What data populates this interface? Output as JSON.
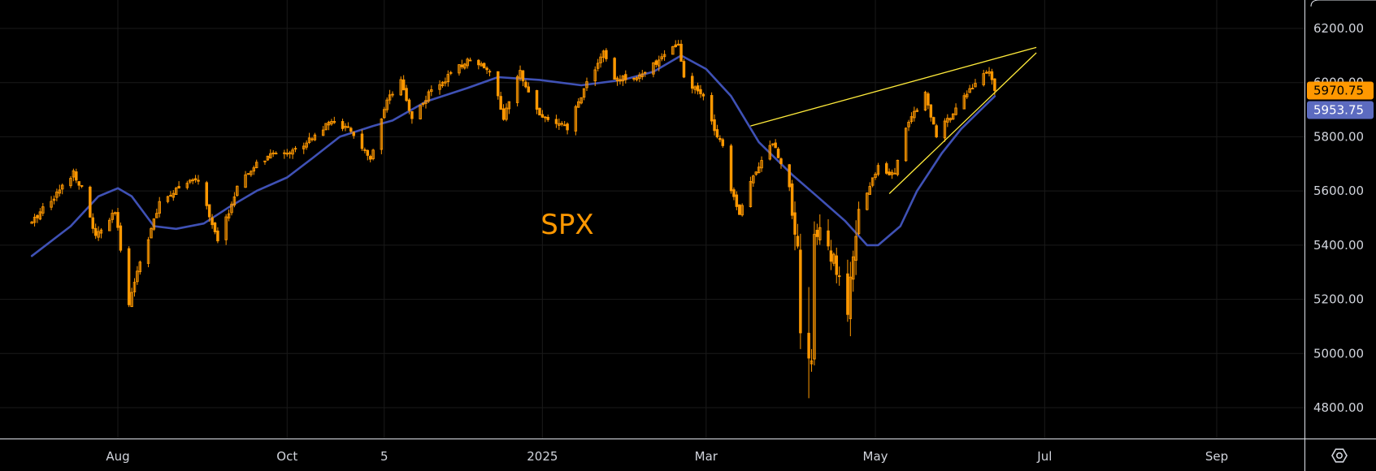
{
  "chart_data": {
    "type": "candlestick",
    "title": "SPX",
    "ylim": [
      4700,
      6240
    ],
    "y_ticks": [
      {
        "value": 6200,
        "label": "6200.00"
      },
      {
        "value": 6000,
        "label": "6000.00"
      },
      {
        "value": 5800,
        "label": "5800.00"
      },
      {
        "value": 5600,
        "label": "5600.00"
      },
      {
        "value": 5400,
        "label": "5400.00"
      },
      {
        "value": 5200,
        "label": "5200.00"
      },
      {
        "value": 5000,
        "label": "5000.00"
      },
      {
        "value": 4800,
        "label": "4800.00"
      }
    ],
    "x_ticks": [
      {
        "date": "2024-08-01",
        "label": "Aug"
      },
      {
        "date": "2024-10-01",
        "label": "Oct"
      },
      {
        "date": "2024-11-05",
        "label": "5"
      },
      {
        "date": "2025-01-01",
        "label": "2025"
      },
      {
        "date": "2025-03-01",
        "label": "Mar"
      },
      {
        "date": "2025-05-01",
        "label": "May"
      },
      {
        "date": "2025-07-01",
        "label": "Jul"
      },
      {
        "date": "2025-09-01",
        "label": "Sep"
      }
    ],
    "x_range": [
      "2024-07-01",
      "2025-09-30"
    ],
    "close_anchors": [
      [
        "2024-07-01",
        5480
      ],
      [
        "2024-07-05",
        5540
      ],
      [
        "2024-07-10",
        5590
      ],
      [
        "2024-07-16",
        5670
      ],
      [
        "2024-07-19",
        5610
      ],
      [
        "2024-07-24",
        5430
      ],
      [
        "2024-07-31",
        5520
      ],
      [
        "2024-08-05",
        5190
      ],
      [
        "2024-08-09",
        5340
      ],
      [
        "2024-08-16",
        5550
      ],
      [
        "2024-08-23",
        5620
      ],
      [
        "2024-08-30",
        5640
      ],
      [
        "2024-09-06",
        5410
      ],
      [
        "2024-09-13",
        5610
      ],
      [
        "2024-09-20",
        5700
      ],
      [
        "2024-09-27",
        5740
      ],
      [
        "2024-10-04",
        5750
      ],
      [
        "2024-10-11",
        5810
      ],
      [
        "2024-10-18",
        5860
      ],
      [
        "2024-10-25",
        5810
      ],
      [
        "2024-10-31",
        5710
      ],
      [
        "2024-11-06",
        5930
      ],
      [
        "2024-11-11",
        6000
      ],
      [
        "2024-11-15",
        5870
      ],
      [
        "2024-11-22",
        5970
      ],
      [
        "2024-11-29",
        6030
      ],
      [
        "2024-12-06",
        6090
      ],
      [
        "2024-12-13",
        6050
      ],
      [
        "2024-12-18",
        5870
      ],
      [
        "2024-12-24",
        6040
      ],
      [
        "2024-12-31",
        5880
      ],
      [
        "2025-01-10",
        5830
      ],
      [
        "2025-01-17",
        6000
      ],
      [
        "2025-01-23",
        6110
      ],
      [
        "2025-01-27",
        6010
      ],
      [
        "2025-02-07",
        6030
      ],
      [
        "2025-02-14",
        6110
      ],
      [
        "2025-02-19",
        6140
      ],
      [
        "2025-02-21",
        6010
      ],
      [
        "2025-02-28",
        5950
      ],
      [
        "2025-03-03",
        5850
      ],
      [
        "2025-03-07",
        5770
      ],
      [
        "2025-03-10",
        5610
      ],
      [
        "2025-03-13",
        5520
      ],
      [
        "2025-03-19",
        5680
      ],
      [
        "2025-03-25",
        5780
      ],
      [
        "2025-03-31",
        5620
      ],
      [
        "2025-04-03",
        5400
      ],
      [
        "2025-04-04",
        5070
      ],
      [
        "2025-04-08",
        4980
      ],
      [
        "2025-04-09",
        5450
      ],
      [
        "2025-04-14",
        5400
      ],
      [
        "2025-04-21",
        5160
      ],
      [
        "2025-04-25",
        5520
      ],
      [
        "2025-05-02",
        5690
      ],
      [
        "2025-05-08",
        5660
      ],
      [
        "2025-05-12",
        5840
      ],
      [
        "2025-05-19",
        5960
      ],
      [
        "2025-05-23",
        5800
      ],
      [
        "2025-05-30",
        5910
      ],
      [
        "2025-06-06",
        6000
      ],
      [
        "2025-06-11",
        6040
      ],
      [
        "2025-06-13",
        5970
      ]
    ],
    "series": [
      {
        "name": "",
        "kind": "moving-average",
        "color": "#3f51b5",
        "points": [
          [
            "2024-07-01",
            5360
          ],
          [
            "2024-07-15",
            5470
          ],
          [
            "2024-07-25",
            5580
          ],
          [
            "2024-08-01",
            5610
          ],
          [
            "2024-08-06",
            5580
          ],
          [
            "2024-08-14",
            5470
          ],
          [
            "2024-08-22",
            5460
          ],
          [
            "2024-09-01",
            5480
          ],
          [
            "2024-09-10",
            5540
          ],
          [
            "2024-09-20",
            5600
          ],
          [
            "2024-10-01",
            5650
          ],
          [
            "2024-10-10",
            5720
          ],
          [
            "2024-10-20",
            5800
          ],
          [
            "2024-11-01",
            5840
          ],
          [
            "2024-11-08",
            5860
          ],
          [
            "2024-11-20",
            5930
          ],
          [
            "2024-12-05",
            5980
          ],
          [
            "2024-12-16",
            6020
          ],
          [
            "2024-12-31",
            6010
          ],
          [
            "2025-01-15",
            5990
          ],
          [
            "2025-01-30",
            6010
          ],
          [
            "2025-02-10",
            6040
          ],
          [
            "2025-02-20",
            6100
          ],
          [
            "2025-03-01",
            6050
          ],
          [
            "2025-03-10",
            5950
          ],
          [
            "2025-03-20",
            5780
          ],
          [
            "2025-04-01",
            5660
          ],
          [
            "2025-04-10",
            5580
          ],
          [
            "2025-04-20",
            5490
          ],
          [
            "2025-04-28",
            5400
          ],
          [
            "2025-05-02",
            5400
          ],
          [
            "2025-05-10",
            5470
          ],
          [
            "2025-05-16",
            5600
          ],
          [
            "2025-05-25",
            5740
          ],
          [
            "2025-06-01",
            5830
          ],
          [
            "2025-06-08",
            5900
          ],
          [
            "2025-06-13",
            5950
          ]
        ]
      }
    ],
    "trendlines": [
      {
        "color": "#ffeb3b",
        "from": [
          "2025-03-17",
          5840
        ],
        "to": [
          "2025-06-28",
          6130
        ]
      },
      {
        "color": "#ffeb3b",
        "from": [
          "2025-05-06",
          5590
        ],
        "to": [
          "2025-06-28",
          6110
        ]
      }
    ],
    "price_labels": [
      {
        "value": 5970.75,
        "label": "5970.75",
        "color": "#ff9800"
      },
      {
        "value": 5953.75,
        "label": "5953.75",
        "color": "#5c6bc0"
      }
    ],
    "candle_color": "#ff9800",
    "watermark_color": "#ff9800",
    "grid": true,
    "timezone_seed": 17
  },
  "ui": {
    "settings_icon": "gear-icon"
  }
}
